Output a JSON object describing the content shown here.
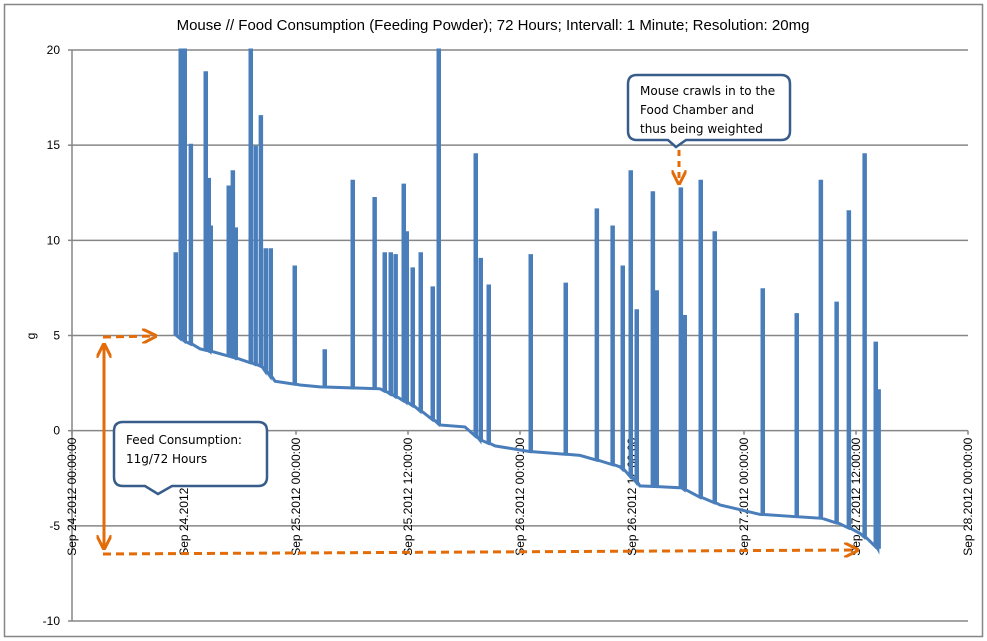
{
  "chart_data": {
    "type": "line",
    "title": "Mouse // Food Consumption (Feeding Powder); 72 Hours; Intervall:  1 Minute; Resolution:  20mg",
    "xlabel": "",
    "ylabel": "g",
    "ylim": [
      -10,
      20
    ],
    "yticks": [
      "20",
      "15",
      "10",
      "5",
      "0",
      "-5",
      "-10"
    ],
    "yticks_values": [
      20,
      15,
      10,
      5,
      0,
      -5,
      -10
    ],
    "xlim": [
      "2012-09-24 00:00",
      "2012-09-28 00:00"
    ],
    "xticks": [
      {
        "t": "2012-09-24 00:00",
        "label": "Sep 24.2012   00:00:00"
      },
      {
        "t": "2012-09-24 12:00",
        "label": "Sep 24.2012   12:00:00"
      },
      {
        "t": "2012-09-25 00:00",
        "label": "Sep 25.2012   00:00:00"
      },
      {
        "t": "2012-09-25 12:00",
        "label": "Sep 25.2012   12:00:00"
      },
      {
        "t": "2012-09-26 00:00",
        "label": "Sep 26.2012   00:00:00"
      },
      {
        "t": "2012-09-26 12:00",
        "label": "Sep 26.2012   12:00:00"
      },
      {
        "t": "2012-09-27 00:00",
        "label": "Sep 27.2012   00:00:00"
      },
      {
        "t": "2012-09-27 12:00",
        "label": "Sep 27.2012   12:00:00"
      },
      {
        "t": "2012-09-28 00:00",
        "label": "Sep 28.2012   00:00:00"
      }
    ],
    "grid": "horizontal",
    "series_color": "#4a7ebb",
    "baseline": [
      [
        "2012-09-24 11:02",
        5.0
      ],
      [
        "2012-09-24 12:06",
        4.7
      ],
      [
        "2012-09-24 13:43",
        4.3
      ],
      [
        "2012-09-24 16:56",
        3.9
      ],
      [
        "2012-09-24 20:09",
        3.4
      ],
      [
        "2012-09-24 21:45",
        2.6
      ],
      [
        "2012-09-25 00:26",
        2.4
      ],
      [
        "2012-09-25 02:34",
        2.3
      ],
      [
        "2012-09-25 09:00",
        2.2
      ],
      [
        "2012-09-25 10:36",
        1.8
      ],
      [
        "2012-09-25 12:13",
        1.4
      ],
      [
        "2012-09-25 15:26",
        0.3
      ],
      [
        "2012-09-25 18:06",
        0.2
      ],
      [
        "2012-09-25 19:43",
        -0.5
      ],
      [
        "2012-09-25 21:19",
        -0.8
      ],
      [
        "2012-09-26 01:04",
        -1.1
      ],
      [
        "2012-09-26 06:26",
        -1.3
      ],
      [
        "2012-09-26 10:43",
        -1.9
      ],
      [
        "2012-09-26 12:51",
        -2.9
      ],
      [
        "2012-09-26 17:09",
        -3.0
      ],
      [
        "2012-09-26 19:17",
        -3.5
      ],
      [
        "2012-09-26 21:26",
        -3.9
      ],
      [
        "2012-09-27 01:43",
        -4.4
      ],
      [
        "2012-09-27 08:09",
        -4.6
      ],
      [
        "2012-09-27 10:17",
        -4.9
      ],
      [
        "2012-09-27 12:26",
        -5.4
      ],
      [
        "2012-09-27 14:21",
        -6.2
      ]
    ],
    "spikes": [
      [
        "2012-09-24 11:02",
        9.3
      ],
      [
        "2012-09-24 11:34",
        20
      ],
      [
        "2012-09-24 12:00",
        20
      ],
      [
        "2012-09-24 12:39",
        15
      ],
      [
        "2012-09-24 14:15",
        18.8
      ],
      [
        "2012-09-24 14:34",
        13.2
      ],
      [
        "2012-09-24 14:47",
        10.7
      ],
      [
        "2012-09-24 16:43",
        12.8
      ],
      [
        "2012-09-24 17:09",
        13.6
      ],
      [
        "2012-09-24 17:28",
        10.6
      ],
      [
        "2012-09-24 19:04",
        20
      ],
      [
        "2012-09-24 19:36",
        14.9
      ],
      [
        "2012-09-24 20:09",
        16.5
      ],
      [
        "2012-09-24 20:41",
        9.5
      ],
      [
        "2012-09-24 21:13",
        9.5
      ],
      [
        "2012-09-24 23:47",
        8.6
      ],
      [
        "2012-09-25 03:00",
        4.2
      ],
      [
        "2012-09-25 06:00",
        13.1
      ],
      [
        "2012-09-25 08:21",
        12.2
      ],
      [
        "2012-09-25 09:26",
        9.3
      ],
      [
        "2012-09-25 10:04",
        9.3
      ],
      [
        "2012-09-25 10:36",
        9.2
      ],
      [
        "2012-09-25 11:28",
        12.9
      ],
      [
        "2012-09-25 11:47",
        10.4
      ],
      [
        "2012-09-25 12:26",
        8.5
      ],
      [
        "2012-09-25 13:17",
        9.3
      ],
      [
        "2012-09-25 14:34",
        7.5
      ],
      [
        "2012-09-25 15:13",
        20
      ],
      [
        "2012-09-25 19:11",
        14.5
      ],
      [
        "2012-09-25 19:43",
        9.0
      ],
      [
        "2012-09-25 20:34",
        7.6
      ],
      [
        "2012-09-26 01:04",
        9.2
      ],
      [
        "2012-09-26 04:49",
        7.7
      ],
      [
        "2012-09-26 08:09",
        11.6
      ],
      [
        "2012-09-26 09:51",
        10.7
      ],
      [
        "2012-09-26 10:56",
        8.6
      ],
      [
        "2012-09-26 11:47",
        13.6
      ],
      [
        "2012-09-26 12:26",
        6.3
      ],
      [
        "2012-09-26 14:09",
        12.5
      ],
      [
        "2012-09-26 14:34",
        7.3
      ],
      [
        "2012-09-26 17:09",
        12.7
      ],
      [
        "2012-09-26 17:34",
        6.0
      ],
      [
        "2012-09-26 19:17",
        13.1
      ],
      [
        "2012-09-26 20:47",
        10.4
      ],
      [
        "2012-09-27 01:56",
        7.4
      ],
      [
        "2012-09-27 05:34",
        6.1
      ],
      [
        "2012-09-27 08:09",
        13.1
      ],
      [
        "2012-09-27 09:51",
        6.7
      ],
      [
        "2012-09-27 11:09",
        11.5
      ],
      [
        "2012-09-27 12:51",
        14.5
      ],
      [
        "2012-09-27 14:02",
        4.6
      ],
      [
        "2012-09-27 14:21",
        2.1
      ]
    ],
    "annotations": [
      {
        "id": "weighted",
        "lines": [
          "Mouse crawls in to the",
          "Food Chamber  and",
          "thus being weighted"
        ]
      },
      {
        "id": "consumption",
        "lines": [
          "Feed Consumption:",
          "11g/72 Hours"
        ]
      }
    ],
    "annotation_color": "#e36c09",
    "callout_border_color": "#385d8a"
  }
}
